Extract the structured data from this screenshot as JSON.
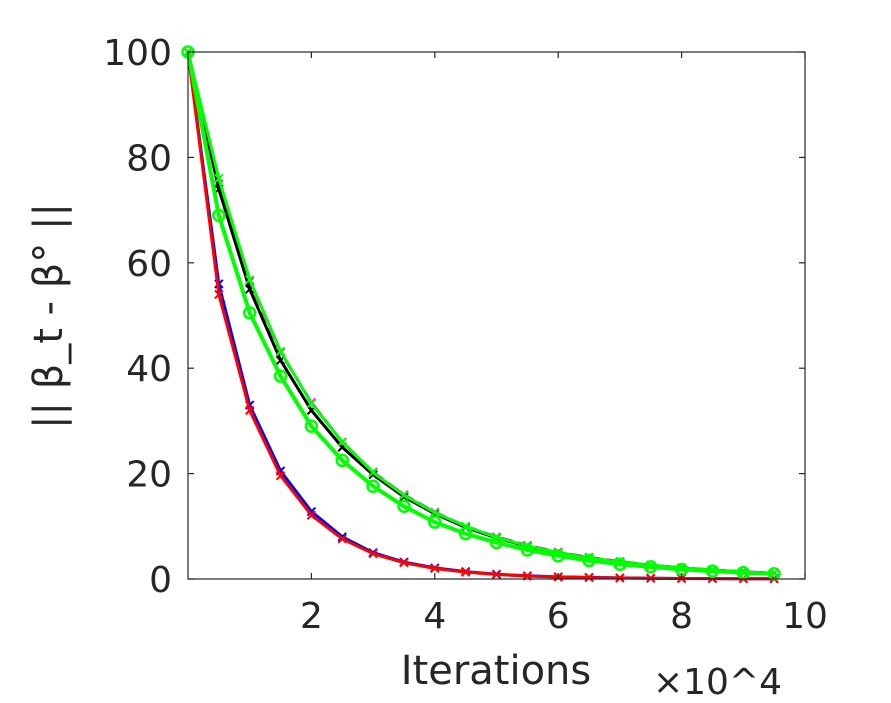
{
  "chart_data": {
    "type": "line",
    "xlabel": "Iterations",
    "ylabel": "|| β_t - β° ||",
    "x_multiplier": "×10^4",
    "xlim": [
      0,
      10
    ],
    "ylim": [
      0,
      100
    ],
    "x_ticks": [
      "2",
      "4",
      "6",
      "8",
      "10"
    ],
    "y_ticks": [
      "0",
      "20",
      "40",
      "60",
      "80",
      "100"
    ],
    "grid": false,
    "x": [
      0,
      0.5,
      1,
      1.5,
      2,
      2.5,
      3,
      3.5,
      4,
      4.5,
      5,
      5.5,
      6,
      6.5,
      7,
      7.5,
      8,
      8.5,
      9,
      9.5
    ],
    "series": [
      {
        "color": "#0000ff",
        "marker": "x",
        "values": [
          100,
          56,
          33,
          20.5,
          12.8,
          8,
          5,
          3.2,
          2.1,
          1.4,
          0.9,
          0.6,
          0.4,
          0.3,
          0.2,
          0.15,
          0.1,
          0.08,
          0.06,
          0.05
        ]
      },
      {
        "color": "#ff0000",
        "marker": "x",
        "values": [
          100,
          54,
          32,
          19.6,
          12.1,
          7.6,
          4.8,
          3.1,
          2,
          1.3,
          0.85,
          0.55,
          0.38,
          0.27,
          0.19,
          0.14,
          0.1,
          0.08,
          0.06,
          0.05
        ]
      },
      {
        "color": "#ff00ff",
        "marker": "x",
        "dashed": true,
        "values": [
          100,
          75,
          56.5,
          43,
          33.5,
          26,
          20.3,
          16,
          12.7,
          10,
          8,
          6.4,
          5.1,
          4.1,
          3.3,
          2.6,
          2.1,
          1.7,
          1.4,
          1.1
        ]
      },
      {
        "color": "#000000",
        "marker": "x",
        "values": [
          100,
          74,
          55,
          41.5,
          32,
          25,
          19.8,
          15.6,
          12.4,
          9.8,
          7.8,
          6.2,
          5,
          4,
          3.2,
          2.6,
          2.1,
          1.7,
          1.3,
          1.1
        ]
      },
      {
        "color": "#00ff00",
        "marker": "x",
        "values": [
          100,
          76,
          56.8,
          43.2,
          33.3,
          26,
          20.2,
          15.9,
          12.6,
          10,
          7.9,
          6.3,
          5,
          4,
          3.2,
          2.6,
          2.1,
          1.7,
          1.3,
          1.1
        ]
      },
      {
        "color": "#00ff00",
        "marker": "o",
        "values": [
          100,
          69,
          50.5,
          38.5,
          29,
          22.5,
          17.6,
          13.8,
          10.8,
          8.6,
          6.9,
          5.5,
          4.4,
          3.5,
          2.8,
          2.3,
          1.8,
          1.5,
          1.2,
          1
        ]
      }
    ]
  }
}
